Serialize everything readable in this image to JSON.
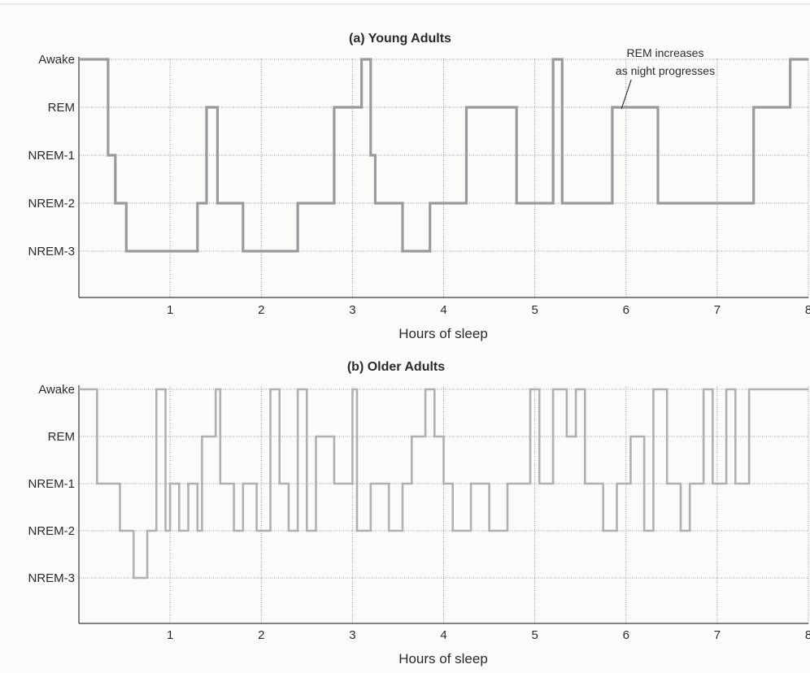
{
  "chart_data": [
    {
      "type": "line",
      "title": "(a) Young Adults",
      "xlabel": "Hours of sleep",
      "ylabel": "",
      "xlim": [
        0,
        8
      ],
      "x_ticks": [
        "1",
        "2",
        "3",
        "4",
        "5",
        "6",
        "7",
        "8"
      ],
      "y_categories": [
        "Awake",
        "REM",
        "NREM-1",
        "NREM-2",
        "NREM-3"
      ],
      "grid": true,
      "line_color": "#9a9a9a",
      "annotation": {
        "lines": [
          "REM increases",
          "as night progresses"
        ],
        "points_to_hours": 5.95
      },
      "series": [
        {
          "steps": [
            [
              0.0,
              "Awake"
            ],
            [
              0.32,
              "NREM-1"
            ],
            [
              0.4,
              "NREM-2"
            ],
            [
              0.52,
              "NREM-3"
            ],
            [
              1.3,
              "NREM-2"
            ],
            [
              1.4,
              "REM"
            ],
            [
              1.52,
              "NREM-2"
            ],
            [
              1.8,
              "NREM-3"
            ],
            [
              2.4,
              "NREM-2"
            ],
            [
              2.8,
              "REM"
            ],
            [
              3.1,
              "Awake"
            ],
            [
              3.2,
              "NREM-1"
            ],
            [
              3.25,
              "NREM-2"
            ],
            [
              3.55,
              "NREM-3"
            ],
            [
              3.85,
              "NREM-2"
            ],
            [
              4.25,
              "REM"
            ],
            [
              4.8,
              "NREM-2"
            ],
            [
              5.2,
              "Awake"
            ],
            [
              5.3,
              "NREM-2"
            ],
            [
              5.85,
              "REM"
            ],
            [
              6.35,
              "NREM-2"
            ],
            [
              7.4,
              "REM"
            ],
            [
              7.8,
              "Awake"
            ],
            [
              8.0,
              "Awake"
            ]
          ]
        }
      ]
    },
    {
      "type": "line",
      "title": "(b) Older Adults",
      "xlabel": "Hours of sleep",
      "ylabel": "",
      "xlim": [
        0,
        8
      ],
      "x_ticks": [
        "1",
        "2",
        "3",
        "4",
        "5",
        "6",
        "7",
        "8"
      ],
      "y_categories": [
        "Awake",
        "REM",
        "NREM-1",
        "NREM-2",
        "NREM-3"
      ],
      "grid": true,
      "line_color": "#b0b0b0",
      "series": [
        {
          "steps": [
            [
              0.0,
              "Awake"
            ],
            [
              0.2,
              "NREM-1"
            ],
            [
              0.45,
              "NREM-2"
            ],
            [
              0.6,
              "NREM-3"
            ],
            [
              0.75,
              "NREM-2"
            ],
            [
              0.85,
              "Awake"
            ],
            [
              0.95,
              "NREM-2"
            ],
            [
              1.0,
              "NREM-1"
            ],
            [
              1.1,
              "NREM-2"
            ],
            [
              1.2,
              "NREM-1"
            ],
            [
              1.3,
              "NREM-2"
            ],
            [
              1.35,
              "REM"
            ],
            [
              1.5,
              "Awake"
            ],
            [
              1.55,
              "NREM-1"
            ],
            [
              1.7,
              "NREM-2"
            ],
            [
              1.8,
              "NREM-1"
            ],
            [
              1.95,
              "NREM-2"
            ],
            [
              2.1,
              "Awake"
            ],
            [
              2.2,
              "NREM-1"
            ],
            [
              2.3,
              "NREM-2"
            ],
            [
              2.4,
              "Awake"
            ],
            [
              2.5,
              "NREM-2"
            ],
            [
              2.6,
              "REM"
            ],
            [
              2.8,
              "NREM-1"
            ],
            [
              3.0,
              "Awake"
            ],
            [
              3.05,
              "NREM-2"
            ],
            [
              3.2,
              "NREM-1"
            ],
            [
              3.4,
              "NREM-2"
            ],
            [
              3.55,
              "NREM-1"
            ],
            [
              3.65,
              "REM"
            ],
            [
              3.8,
              "Awake"
            ],
            [
              3.9,
              "REM"
            ],
            [
              4.0,
              "NREM-1"
            ],
            [
              4.1,
              "NREM-2"
            ],
            [
              4.3,
              "NREM-1"
            ],
            [
              4.5,
              "NREM-2"
            ],
            [
              4.7,
              "NREM-1"
            ],
            [
              4.95,
              "Awake"
            ],
            [
              5.05,
              "NREM-1"
            ],
            [
              5.2,
              "Awake"
            ],
            [
              5.35,
              "REM"
            ],
            [
              5.45,
              "Awake"
            ],
            [
              5.55,
              "NREM-1"
            ],
            [
              5.75,
              "NREM-2"
            ],
            [
              5.9,
              "NREM-1"
            ],
            [
              6.05,
              "REM"
            ],
            [
              6.2,
              "NREM-2"
            ],
            [
              6.3,
              "Awake"
            ],
            [
              6.45,
              "NREM-1"
            ],
            [
              6.6,
              "NREM-2"
            ],
            [
              6.7,
              "NREM-1"
            ],
            [
              6.85,
              "Awake"
            ],
            [
              6.95,
              "NREM-1"
            ],
            [
              7.1,
              "Awake"
            ],
            [
              7.2,
              "NREM-1"
            ],
            [
              7.35,
              "Awake"
            ],
            [
              8.0,
              "Awake"
            ]
          ]
        }
      ]
    }
  ]
}
